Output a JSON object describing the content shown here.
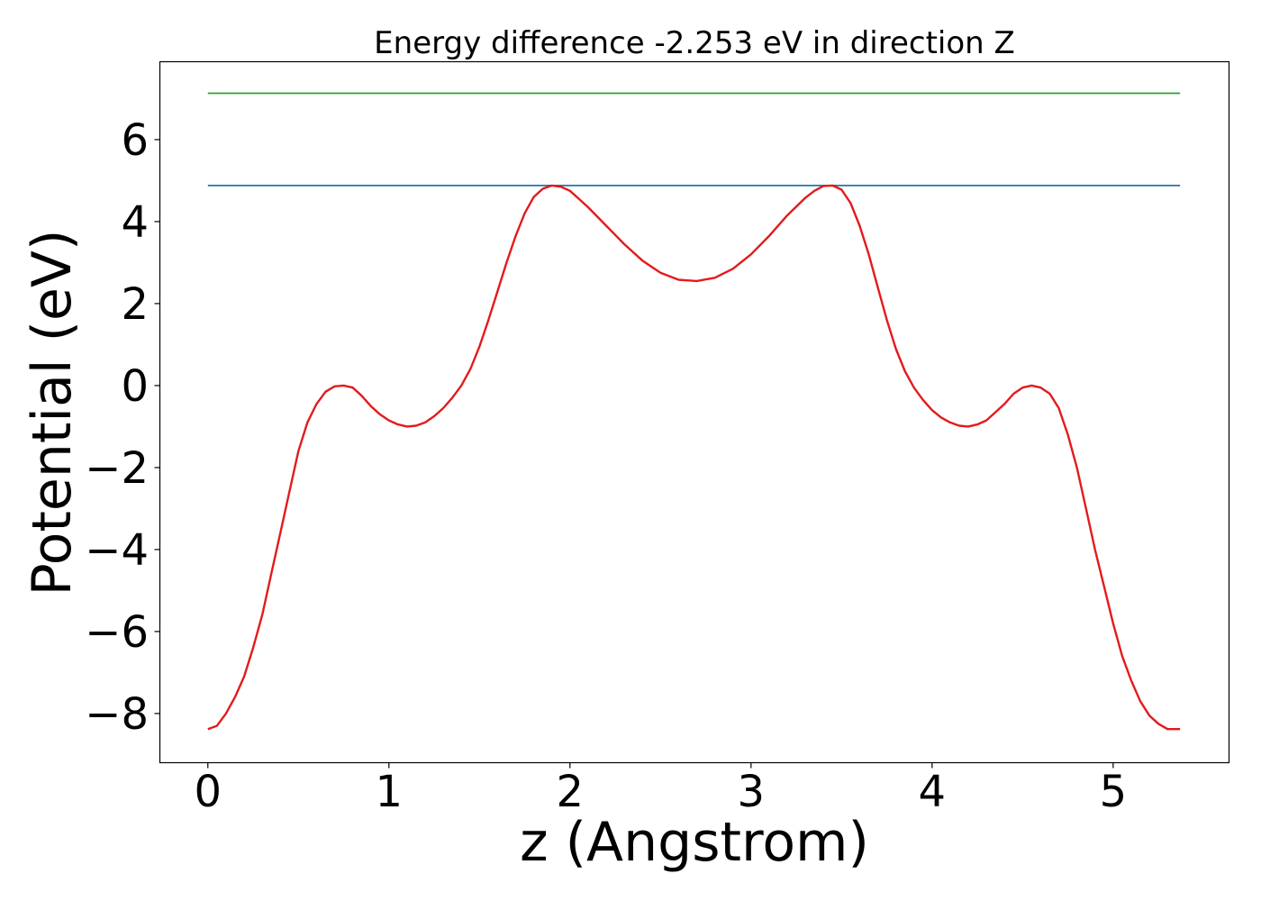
{
  "chart_data": {
    "type": "line",
    "title": "Energy difference -2.253 eV in direction Z",
    "xlabel": "z (Angstrom)",
    "ylabel": "Potential (eV)",
    "xlim": [
      -0.265,
      5.64
    ],
    "ylim": [
      -9.2,
      7.9
    ],
    "xticks": [
      0,
      1,
      2,
      3,
      4,
      5
    ],
    "xtick_labels": [
      "0",
      "1",
      "2",
      "3",
      "4",
      "5"
    ],
    "yticks": [
      -8,
      -6,
      -4,
      -2,
      0,
      2,
      4,
      6
    ],
    "ytick_labels": [
      "−8",
      "−6",
      "−4",
      "−2",
      "0",
      "2",
      "4",
      "6"
    ],
    "grid": false,
    "series": [
      {
        "color": "#2ca02c",
        "x": [
          0,
          5.37
        ],
        "y": [
          7.13,
          7.13
        ]
      },
      {
        "color": "#1f77b4",
        "x": [
          0,
          5.37
        ],
        "y": [
          4.88,
          4.88
        ]
      },
      {
        "color": "#e31a1c",
        "x": [
          0,
          0.05,
          0.1,
          0.15,
          0.2,
          0.25,
          0.3,
          0.35,
          0.4,
          0.45,
          0.5,
          0.55,
          0.6,
          0.65,
          0.7,
          0.75,
          0.8,
          0.85,
          0.9,
          0.95,
          1.0,
          1.05,
          1.1,
          1.15,
          1.2,
          1.25,
          1.3,
          1.35,
          1.4,
          1.45,
          1.5,
          1.55,
          1.6,
          1.65,
          1.7,
          1.75,
          1.8,
          1.85,
          1.9,
          1.95,
          2.0,
          2.05,
          2.1,
          2.2,
          2.3,
          2.4,
          2.5,
          2.6,
          2.7,
          2.8,
          2.9,
          3.0,
          3.1,
          3.2,
          3.3,
          3.35,
          3.4,
          3.45,
          3.5,
          3.55,
          3.6,
          3.65,
          3.7,
          3.75,
          3.8,
          3.85,
          3.9,
          3.95,
          4.0,
          4.05,
          4.1,
          4.15,
          4.2,
          4.25,
          4.3,
          4.35,
          4.4,
          4.45,
          4.5,
          4.55,
          4.6,
          4.65,
          4.7,
          4.75,
          4.8,
          4.85,
          4.9,
          4.95,
          5.0,
          5.05,
          5.1,
          5.15,
          5.2,
          5.25,
          5.3,
          5.37
        ],
        "y": [
          -8.38,
          -8.3,
          -8.0,
          -7.6,
          -7.1,
          -6.4,
          -5.6,
          -4.6,
          -3.6,
          -2.6,
          -1.6,
          -0.9,
          -0.45,
          -0.15,
          -0.02,
          0.0,
          -0.05,
          -0.25,
          -0.5,
          -0.7,
          -0.85,
          -0.95,
          -1.0,
          -0.98,
          -0.9,
          -0.75,
          -0.55,
          -0.3,
          0.0,
          0.4,
          0.95,
          1.6,
          2.3,
          3.0,
          3.65,
          4.2,
          4.6,
          4.8,
          4.88,
          4.85,
          4.75,
          4.55,
          4.35,
          3.9,
          3.45,
          3.05,
          2.75,
          2.58,
          2.55,
          2.63,
          2.85,
          3.2,
          3.65,
          4.15,
          4.58,
          4.75,
          4.87,
          4.88,
          4.78,
          4.45,
          3.9,
          3.2,
          2.4,
          1.6,
          0.9,
          0.35,
          -0.05,
          -0.35,
          -0.6,
          -0.78,
          -0.9,
          -0.98,
          -1.0,
          -0.95,
          -0.85,
          -0.65,
          -0.45,
          -0.2,
          -0.05,
          0.0,
          -0.05,
          -0.2,
          -0.55,
          -1.2,
          -2.0,
          -3.0,
          -4.0,
          -4.9,
          -5.8,
          -6.6,
          -7.2,
          -7.7,
          -8.05,
          -8.25,
          -8.38,
          -8.38
        ]
      }
    ]
  }
}
